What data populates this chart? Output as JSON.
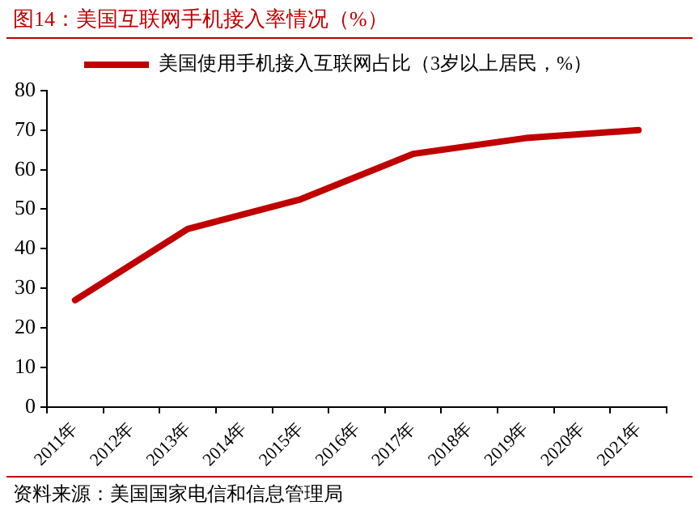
{
  "chart_data": {
    "type": "line",
    "title": "图14：美国互联网手机接入率情况（%）",
    "categories": [
      "2011年",
      "2012年",
      "2013年",
      "2014年",
      "2015年",
      "2016年",
      "2017年",
      "2018年",
      "2019年",
      "2020年",
      "2021年"
    ],
    "series": [
      {
        "name": "美国使用手机接入互联网占比（3岁以上居民，%）",
        "color": "#c00000",
        "values": [
          27,
          null,
          45,
          null,
          52.5,
          null,
          64,
          null,
          68,
          null,
          70
        ]
      }
    ],
    "ylim": [
      0,
      80
    ],
    "yticks": [
      0,
      10,
      20,
      30,
      40,
      50,
      60,
      70,
      80
    ],
    "grid": false,
    "legend": "top",
    "marker": "none",
    "line_style": "solid",
    "annotations": [
      "资料来源：美国国家电信和信息管理局"
    ]
  }
}
